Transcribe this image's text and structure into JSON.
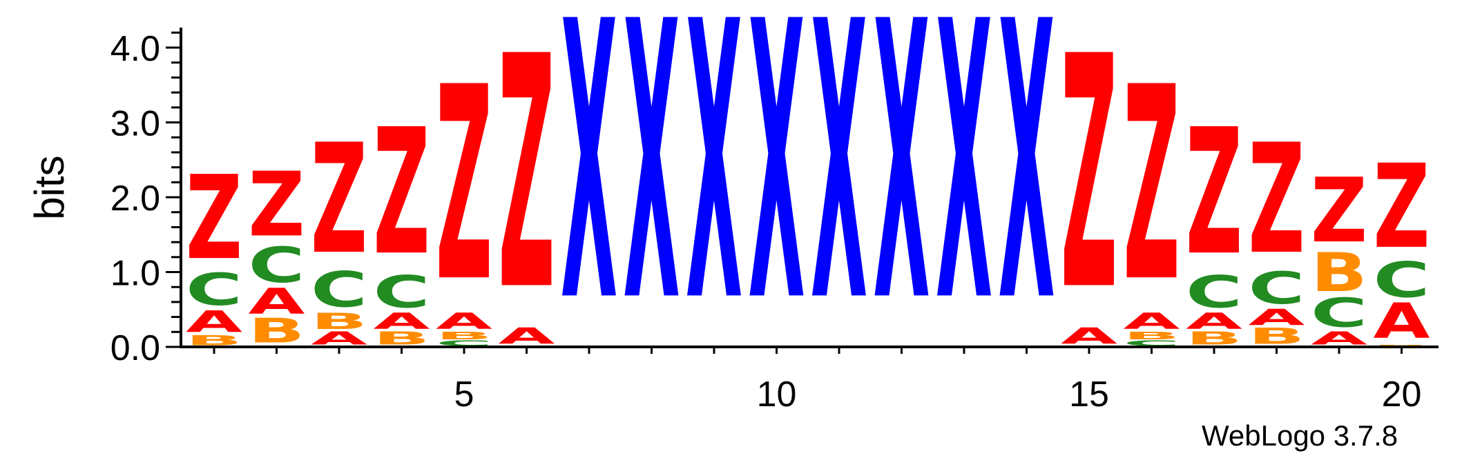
{
  "chart_data": {
    "type": "sequence-logo",
    "ylabel": "bits",
    "xlabel": "",
    "ylim": [
      0,
      4.3
    ],
    "yticks": [
      "0.0",
      "1.0",
      "2.0",
      "3.0",
      "4.0"
    ],
    "ytick_values": [
      0,
      1,
      2,
      3,
      4
    ],
    "xticks": [
      "5",
      "10",
      "15",
      "20"
    ],
    "xtick_values": [
      5,
      10,
      15,
      20
    ],
    "colors": {
      "A": "#ff0000",
      "Z": "#ff0000",
      "C": "#228b22",
      "B": "#ff8c00",
      "X": "#0000ff"
    },
    "positions": [
      {
        "pos": 1,
        "stack": [
          {
            "letter": "B",
            "bits": 0.15
          },
          {
            "letter": "A",
            "bits": 0.33
          },
          {
            "letter": "C",
            "bits": 0.5
          },
          {
            "letter": "Z",
            "bits": 1.3
          }
        ]
      },
      {
        "pos": 2,
        "stack": [
          {
            "letter": "B",
            "bits": 0.38
          },
          {
            "letter": "A",
            "bits": 0.4
          },
          {
            "letter": "C",
            "bits": 0.55
          },
          {
            "letter": "Z",
            "bits": 1.0
          }
        ]
      },
      {
        "pos": 3,
        "stack": [
          {
            "letter": "A",
            "bits": 0.2
          },
          {
            "letter": "B",
            "bits": 0.25
          },
          {
            "letter": "C",
            "bits": 0.55
          },
          {
            "letter": "Z",
            "bits": 1.7
          }
        ]
      },
      {
        "pos": 4,
        "stack": [
          {
            "letter": "B",
            "bits": 0.2
          },
          {
            "letter": "A",
            "bits": 0.25
          },
          {
            "letter": "C",
            "bits": 0.5
          },
          {
            "letter": "Z",
            "bits": 1.95
          }
        ]
      },
      {
        "pos": 5,
        "stack": [
          {
            "letter": "C",
            "bits": 0.08
          },
          {
            "letter": "B",
            "bits": 0.12
          },
          {
            "letter": "A",
            "bits": 0.25
          },
          {
            "letter": "Z",
            "bits": 3.0
          }
        ]
      },
      {
        "pos": 6,
        "stack": [
          {
            "letter": "A",
            "bits": 0.25
          },
          {
            "letter": "Z",
            "bits": 3.6
          }
        ]
      },
      {
        "pos": 7,
        "stack": [
          {
            "letter": "X",
            "bits": 4.3
          }
        ]
      },
      {
        "pos": 8,
        "stack": [
          {
            "letter": "X",
            "bits": 4.3
          }
        ]
      },
      {
        "pos": 9,
        "stack": [
          {
            "letter": "X",
            "bits": 4.3
          }
        ]
      },
      {
        "pos": 10,
        "stack": [
          {
            "letter": "X",
            "bits": 4.3
          }
        ]
      },
      {
        "pos": 11,
        "stack": [
          {
            "letter": "X",
            "bits": 4.3
          }
        ]
      },
      {
        "pos": 12,
        "stack": [
          {
            "letter": "X",
            "bits": 4.3
          }
        ]
      },
      {
        "pos": 13,
        "stack": [
          {
            "letter": "X",
            "bits": 4.3
          }
        ]
      },
      {
        "pos": 14,
        "stack": [
          {
            "letter": "X",
            "bits": 4.3
          }
        ]
      },
      {
        "pos": 15,
        "stack": [
          {
            "letter": "A",
            "bits": 0.25
          },
          {
            "letter": "Z",
            "bits": 3.6
          }
        ]
      },
      {
        "pos": 16,
        "stack": [
          {
            "letter": "C",
            "bits": 0.08
          },
          {
            "letter": "B",
            "bits": 0.12
          },
          {
            "letter": "A",
            "bits": 0.25
          },
          {
            "letter": "Z",
            "bits": 3.0
          }
        ]
      },
      {
        "pos": 17,
        "stack": [
          {
            "letter": "B",
            "bits": 0.2
          },
          {
            "letter": "A",
            "bits": 0.25
          },
          {
            "letter": "C",
            "bits": 0.5
          },
          {
            "letter": "Z",
            "bits": 1.95
          }
        ]
      },
      {
        "pos": 18,
        "stack": [
          {
            "letter": "B",
            "bits": 0.25
          },
          {
            "letter": "A",
            "bits": 0.25
          },
          {
            "letter": "C",
            "bits": 0.5
          },
          {
            "letter": "Z",
            "bits": 1.7
          }
        ]
      },
      {
        "pos": 19,
        "stack": [
          {
            "letter": "A",
            "bits": 0.2
          },
          {
            "letter": "C",
            "bits": 0.45
          },
          {
            "letter": "B",
            "bits": 0.6
          },
          {
            "letter": "Z",
            "bits": 1.0
          }
        ]
      },
      {
        "pos": 20,
        "stack": [
          {
            "letter": "B",
            "bits": 0.03
          },
          {
            "letter": "A",
            "bits": 0.55
          },
          {
            "letter": "C",
            "bits": 0.55
          },
          {
            "letter": "Z",
            "bits": 1.3
          }
        ]
      }
    ]
  },
  "credit": "WebLogo 3.7.8"
}
